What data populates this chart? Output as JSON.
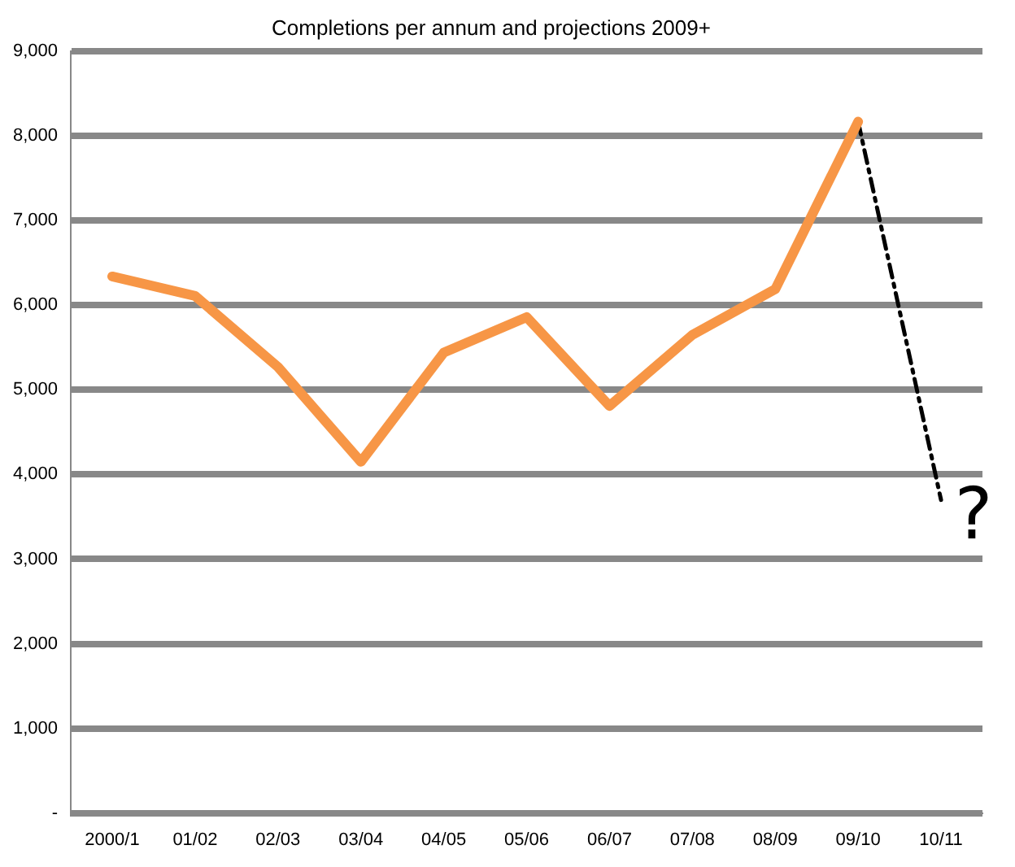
{
  "chart_data": {
    "type": "line",
    "title": "Completions per annum and projections 2009+",
    "categories": [
      "2000/1",
      "01/02",
      "02/03",
      "03/04",
      "04/05",
      "05/06",
      "06/07",
      "07/08",
      "08/09",
      "09/10",
      "10/11"
    ],
    "series": [
      {
        "color": "#f79646",
        "line_style": "solid",
        "values": [
          6340,
          6110,
          5270,
          4150,
          5440,
          5860,
          4810,
          5650,
          6190,
          8170,
          null
        ]
      },
      {
        "color": "#000000",
        "line_style": "dashed",
        "values": [
          null,
          null,
          null,
          null,
          null,
          null,
          null,
          null,
          null,
          8170,
          3700
        ]
      }
    ],
    "ylim": [
      0,
      9000
    ],
    "yticks": [
      {
        "value": 0,
        "label": "-"
      },
      {
        "value": 1000,
        "label": "1,000"
      },
      {
        "value": 2000,
        "label": "2,000"
      },
      {
        "value": 3000,
        "label": "3,000"
      },
      {
        "value": 4000,
        "label": "4,000"
      },
      {
        "value": 5000,
        "label": "5,000"
      },
      {
        "value": 6000,
        "label": "6,000"
      },
      {
        "value": 7000,
        "label": "7,000"
      },
      {
        "value": 8000,
        "label": "8,000"
      },
      {
        "value": 9000,
        "label": "9,000"
      }
    ],
    "grid": "y",
    "legend": false,
    "marker": "none",
    "annotations": [
      "?"
    ]
  }
}
